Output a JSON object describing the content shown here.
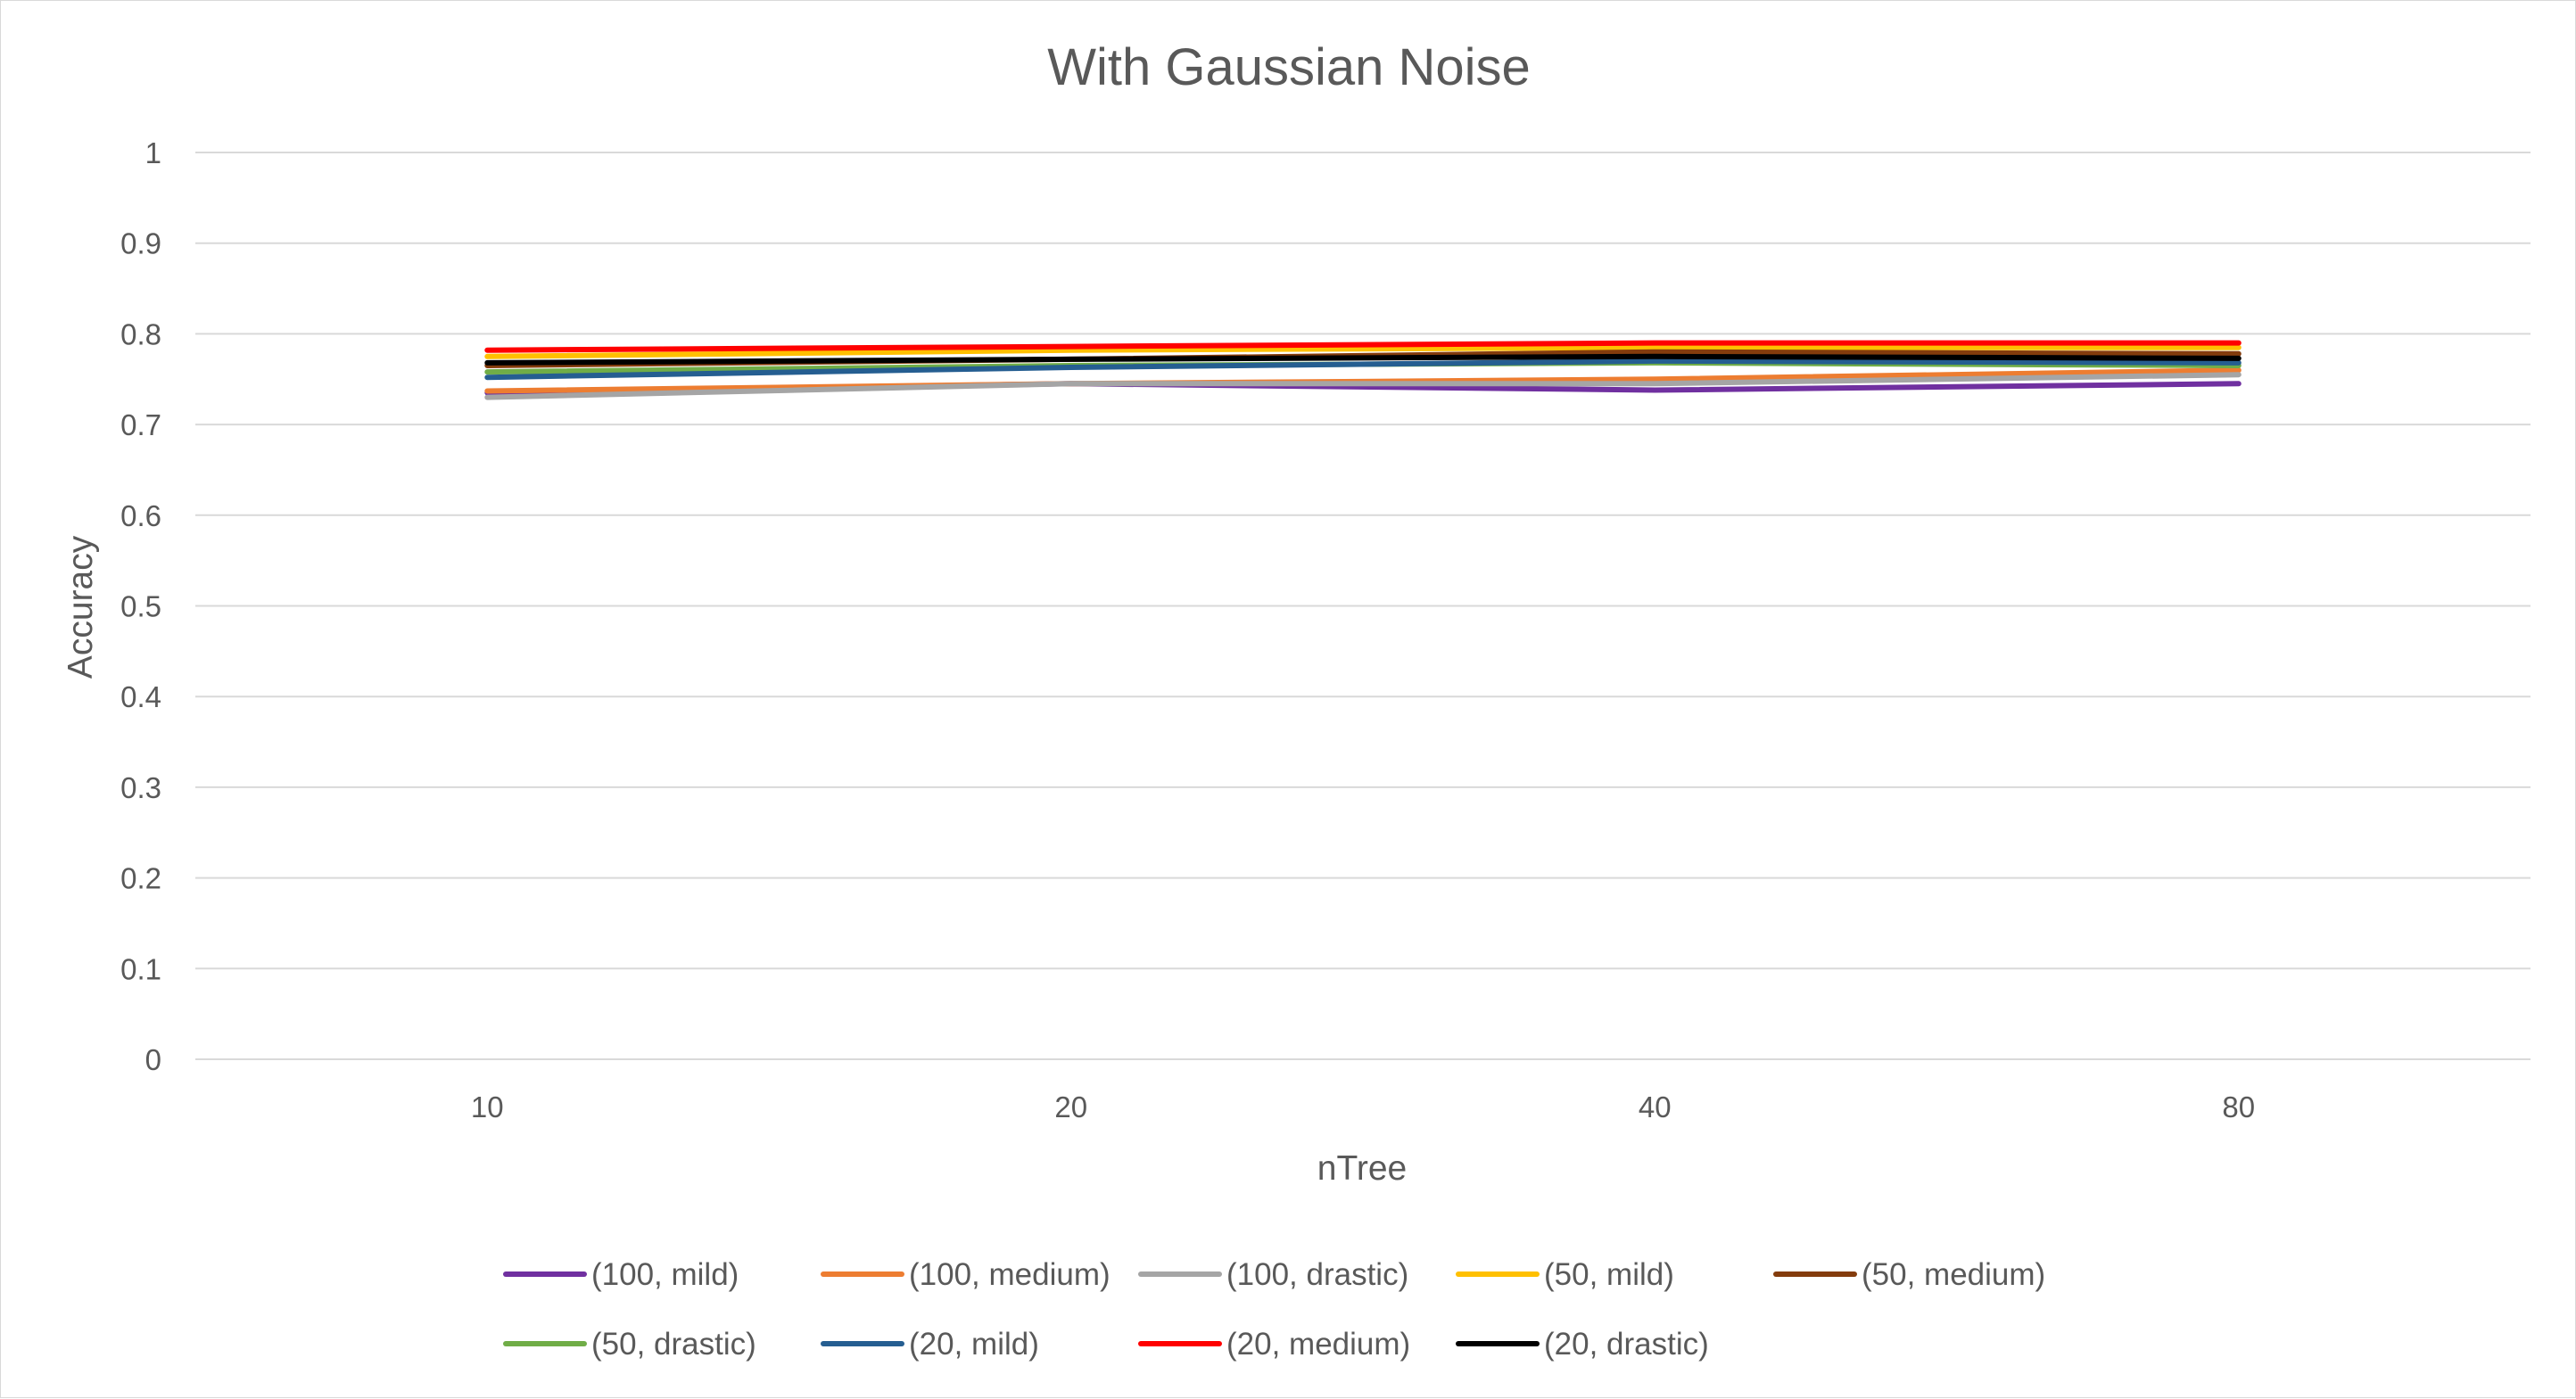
{
  "chart_data": {
    "type": "line",
    "title": "With Gaussian Noise",
    "xlabel": "nTree",
    "ylabel": "Accuracy",
    "categories": [
      "10",
      "20",
      "40",
      "80"
    ],
    "ylim": [
      0,
      1
    ],
    "yticks": [
      "0",
      "0.1",
      "0.2",
      "0.3",
      "0.4",
      "0.5",
      "0.6",
      "0.7",
      "0.8",
      "0.9",
      "1"
    ],
    "grid": "horizontal",
    "legend_position": "bottom",
    "series": [
      {
        "name": "(100, mild)",
        "color": "#7030a0",
        "values": [
          0.735,
          0.745,
          0.738,
          0.745
        ]
      },
      {
        "name": "(100, medium)",
        "color": "#ed7d31",
        "values": [
          0.737,
          0.745,
          0.75,
          0.76
        ]
      },
      {
        "name": "(100, drastic)",
        "color": "#a5a5a5",
        "values": [
          0.73,
          0.745,
          0.745,
          0.755
        ]
      },
      {
        "name": "(50, mild)",
        "color": "#ffc000",
        "values": [
          0.775,
          0.782,
          0.785,
          0.785
        ]
      },
      {
        "name": "(50, medium)",
        "color": "#843c0c",
        "values": [
          0.765,
          0.772,
          0.78,
          0.778
        ]
      },
      {
        "name": "(50, drastic)",
        "color": "#70ad47",
        "values": [
          0.758,
          0.765,
          0.768,
          0.765
        ]
      },
      {
        "name": "(20, mild)",
        "color": "#255e91",
        "values": [
          0.752,
          0.763,
          0.77,
          0.768
        ]
      },
      {
        "name": "(20, medium)",
        "color": "#ff0000",
        "values": [
          0.782,
          0.786,
          0.79,
          0.79
        ]
      },
      {
        "name": "(20, drastic)",
        "color": "#000000",
        "values": [
          0.768,
          0.772,
          0.775,
          0.773
        ]
      }
    ]
  }
}
